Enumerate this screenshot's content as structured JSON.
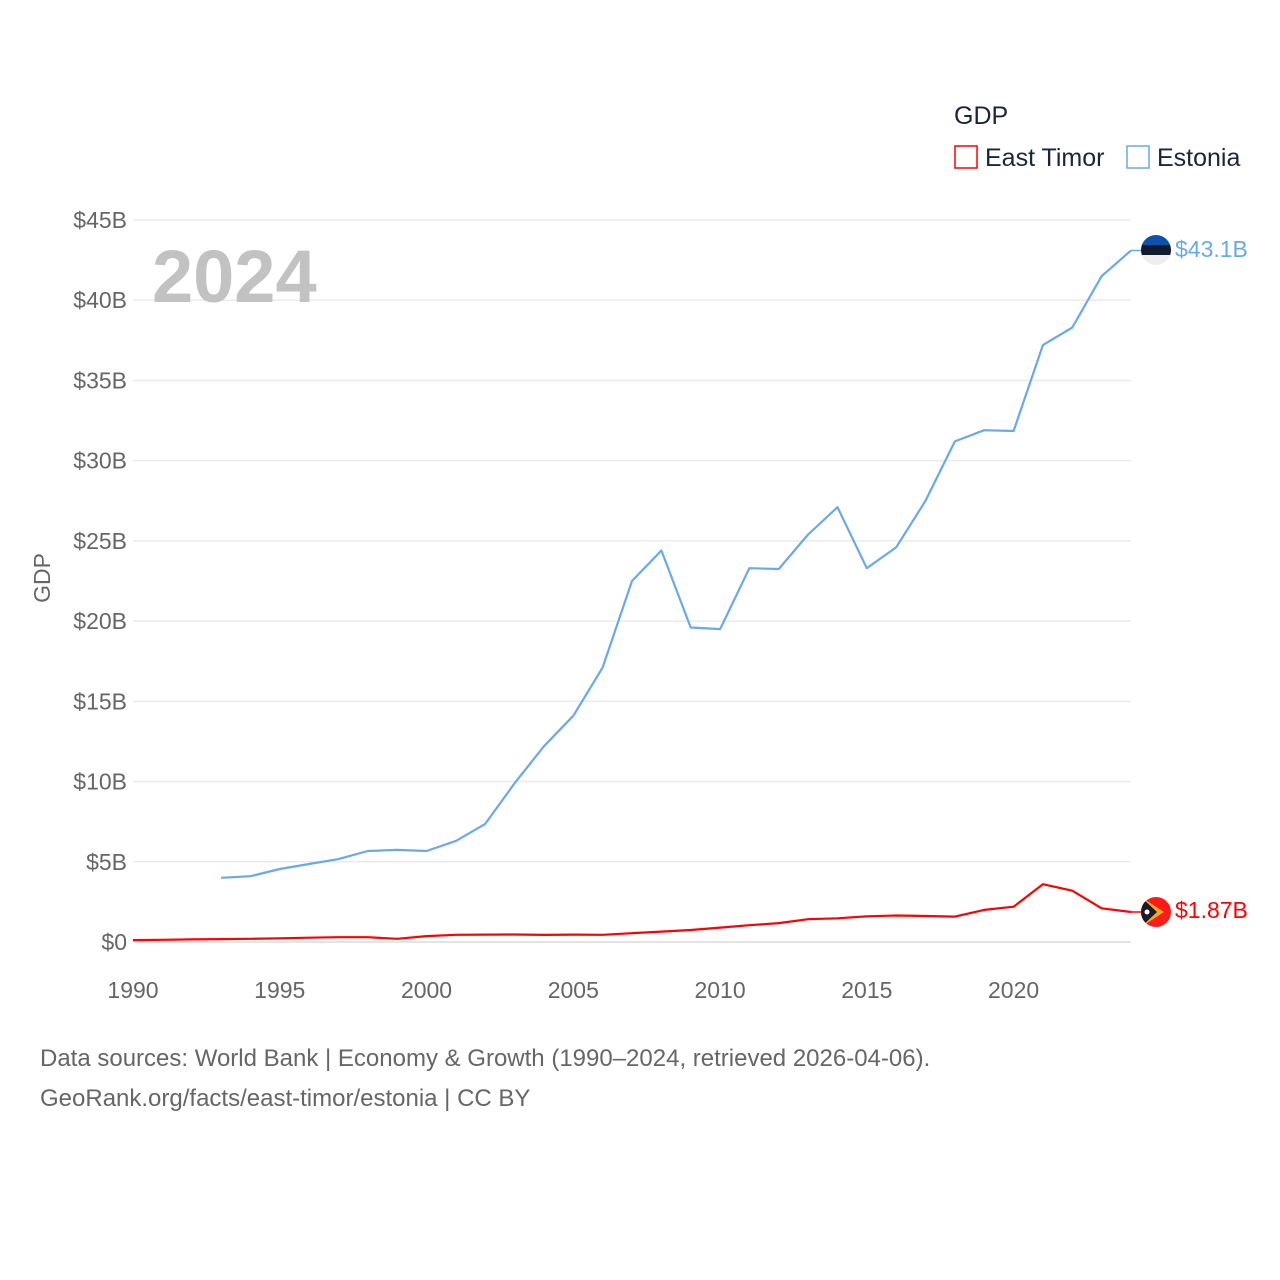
{
  "chart_data": {
    "type": "line",
    "ylabel": "GDP",
    "xlabel": "",
    "year_label": "2024",
    "legend_title": "GDP",
    "legend_position": "top-right",
    "xlim": [
      1990,
      2024
    ],
    "ylim": [
      0,
      45
    ],
    "x_ticks": [
      1990,
      1995,
      2000,
      2005,
      2010,
      2015,
      2020
    ],
    "x_tick_labels": [
      "1990",
      "1995",
      "2000",
      "2005",
      "2010",
      "2015",
      "2020"
    ],
    "y_ticks": [
      0,
      5,
      10,
      15,
      20,
      25,
      30,
      35,
      40,
      45
    ],
    "y_tick_labels": [
      "$0",
      "$5B",
      "$10B",
      "$15B",
      "$20B",
      "$25B",
      "$30B",
      "$35B",
      "$40B",
      "$45B"
    ],
    "grid": true,
    "series": [
      {
        "name": "East Timor",
        "color": "#ff0000",
        "end_label": "$1.87B",
        "x": [
          1990,
          1991,
          1992,
          1993,
          1994,
          1995,
          1996,
          1997,
          1998,
          1999,
          2000,
          2001,
          2002,
          2003,
          2004,
          2005,
          2006,
          2007,
          2008,
          2009,
          2010,
          2011,
          2012,
          2013,
          2014,
          2015,
          2016,
          2017,
          2018,
          2019,
          2020,
          2021,
          2022,
          2023,
          2024
        ],
        "values": [
          0.12,
          0.14,
          0.16,
          0.18,
          0.2,
          0.23,
          0.27,
          0.3,
          0.3,
          0.2,
          0.37,
          0.45,
          0.46,
          0.47,
          0.44,
          0.46,
          0.45,
          0.55,
          0.65,
          0.75,
          0.9,
          1.05,
          1.18,
          1.42,
          1.48,
          1.6,
          1.65,
          1.62,
          1.58,
          2.0,
          2.2,
          3.6,
          3.2,
          2.1,
          1.87
        ]
      },
      {
        "name": "Estonia",
        "color": "#6aa9e9",
        "end_label": "$43.1B",
        "x": [
          1993,
          1994,
          1995,
          1996,
          1997,
          1998,
          1999,
          2000,
          2001,
          2002,
          2003,
          2004,
          2005,
          2006,
          2007,
          2008,
          2009,
          2010,
          2011,
          2012,
          2013,
          2014,
          2015,
          2016,
          2017,
          2018,
          2019,
          2020,
          2021,
          2022,
          2023,
          2024
        ],
        "values": [
          4.0,
          4.1,
          4.55,
          4.86,
          5.17,
          5.67,
          5.74,
          5.67,
          6.3,
          7.36,
          9.9,
          12.2,
          14.1,
          17.1,
          22.5,
          24.4,
          19.6,
          19.5,
          23.3,
          23.25,
          25.4,
          27.1,
          23.3,
          24.6,
          27.5,
          31.2,
          31.9,
          31.85,
          37.2,
          38.3,
          41.5,
          43.1
        ]
      }
    ]
  },
  "footer": {
    "line1": "Data sources: World Bank | Economy & Growth (1990–2024, retrieved 2026-04-06).",
    "line2": "GeoRank.org/facts/east-timor/estonia | CC BY"
  }
}
